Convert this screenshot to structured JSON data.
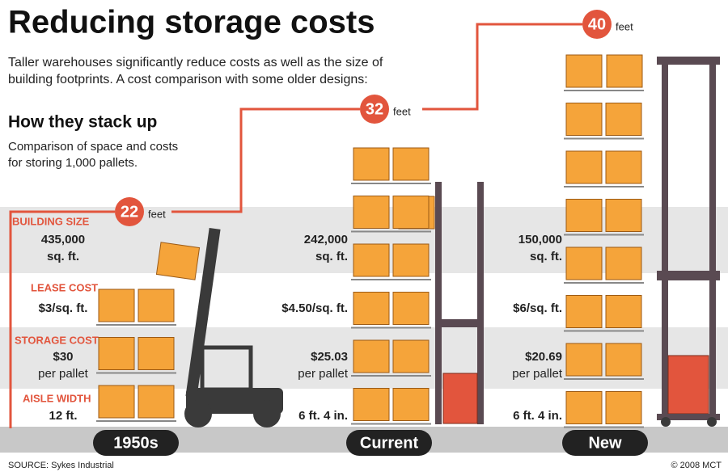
{
  "header": {
    "title": "Reducing storage costs",
    "intro": [
      "Taller warehouses significantly reduce costs as well as the size of",
      "building footprints. A cost comparison with some older designs:"
    ]
  },
  "section": {
    "title": "How they stack up",
    "subtitle": [
      "Comparison of space and costs",
      "for storing 1,000 pallets."
    ]
  },
  "row_labels": [
    "BUILDING SIZE",
    "LEASE COST",
    "STORAGE COST",
    "AISLE WIDTH"
  ],
  "height_unit": "feet",
  "designs": [
    {
      "name": "1950s",
      "height": 22,
      "building_size": [
        "435,000",
        "sq. ft."
      ],
      "lease_cost": "$3/sq. ft.",
      "storage_cost": [
        "$30",
        "per pallet"
      ],
      "aisle_width": "12 ft."
    },
    {
      "name": "Current",
      "height": 32,
      "building_size": [
        "242,000",
        "sq. ft."
      ],
      "lease_cost": "$4.50/sq. ft.",
      "storage_cost": [
        "$25.03",
        "per pallet"
      ],
      "aisle_width": "6 ft. 4 in."
    },
    {
      "name": "New",
      "height": 40,
      "building_size": [
        "150,000",
        "sq. ft."
      ],
      "lease_cost": "$6/sq. ft.",
      "storage_cost": [
        "$20.69",
        "per pallet"
      ],
      "aisle_width": "6 ft. 4 in."
    }
  ],
  "footer": {
    "source": "SOURCE: Sykes Industrial",
    "credit": "© 2008 MCT"
  }
}
